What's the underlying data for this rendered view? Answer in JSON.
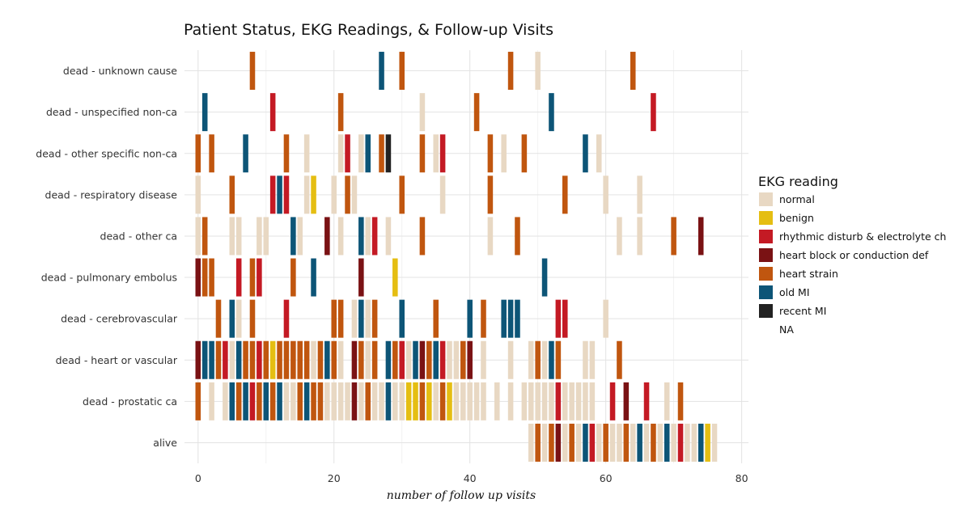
{
  "chart_data": {
    "type": "tile",
    "title": "Patient Status, EKG Readings, & Follow-up Visits",
    "xlabel": "number of follow up visits",
    "ylabel": "",
    "xlim": [
      -2,
      81
    ],
    "x_ticks": [
      0,
      20,
      40,
      60,
      80
    ],
    "grid": true,
    "legend": {
      "title": "EKG reading",
      "placement": "right",
      "entries": [
        {
          "key": "normal",
          "label": "normal",
          "color": "#E8D8C3"
        },
        {
          "key": "benign",
          "label": "benign",
          "color": "#E5BE12"
        },
        {
          "key": "rhythm",
          "label": "rhythmic disturb & electrolyte ch",
          "color": "#C41A24"
        },
        {
          "key": "block",
          "label": "heart block or conduction def",
          "color": "#7A1214"
        },
        {
          "key": "strain",
          "label": "heart strain",
          "color": "#C0560F"
        },
        {
          "key": "oldmi",
          "label": "old MI",
          "color": "#0D5577"
        },
        {
          "key": "recentmi",
          "label": "recent MI",
          "color": "#222222"
        },
        {
          "key": "na",
          "label": "NA",
          "color": "#FFFFFF"
        }
      ]
    },
    "categories": [
      "dead - unknown cause",
      "dead - unspecified non-ca",
      "dead - other specific non-ca",
      "dead - respiratory disease",
      "dead - other ca",
      "dead - pulmonary embolus",
      "dead - cerebrovascular",
      "dead - heart or vascular",
      "dead - prostatic ca",
      "alive"
    ],
    "series": [
      {
        "category": "dead - unknown cause",
        "points": [
          [
            8,
            "strain"
          ],
          [
            27,
            "oldmi"
          ],
          [
            30,
            "strain"
          ],
          [
            46,
            "strain"
          ],
          [
            50,
            "normal"
          ],
          [
            64,
            "strain"
          ]
        ]
      },
      {
        "category": "dead - unspecified non-ca",
        "points": [
          [
            1,
            "oldmi"
          ],
          [
            11,
            "rhythm"
          ],
          [
            21,
            "strain"
          ],
          [
            33,
            "normal"
          ],
          [
            41,
            "strain"
          ],
          [
            52,
            "oldmi"
          ],
          [
            67,
            "rhythm"
          ]
        ]
      },
      {
        "category": "dead - other specific non-ca",
        "points": [
          [
            0,
            "strain"
          ],
          [
            2,
            "strain"
          ],
          [
            7,
            "oldmi"
          ],
          [
            13,
            "strain"
          ],
          [
            16,
            "normal"
          ],
          [
            21,
            "normal"
          ],
          [
            22,
            "rhythm"
          ],
          [
            24,
            "normal"
          ],
          [
            25,
            "oldmi"
          ],
          [
            27,
            "strain"
          ],
          [
            28,
            "recentmi"
          ],
          [
            33,
            "strain"
          ],
          [
            35,
            "normal"
          ],
          [
            36,
            "rhythm"
          ],
          [
            43,
            "strain"
          ],
          [
            45,
            "normal"
          ],
          [
            48,
            "strain"
          ],
          [
            57,
            "oldmi"
          ],
          [
            59,
            "normal"
          ]
        ]
      },
      {
        "category": "dead - respiratory disease",
        "points": [
          [
            0,
            "normal"
          ],
          [
            5,
            "strain"
          ],
          [
            11,
            "rhythm"
          ],
          [
            12,
            "oldmi"
          ],
          [
            13,
            "rhythm"
          ],
          [
            16,
            "normal"
          ],
          [
            17,
            "benign"
          ],
          [
            20,
            "normal"
          ],
          [
            22,
            "strain"
          ],
          [
            23,
            "normal"
          ],
          [
            30,
            "strain"
          ],
          [
            36,
            "normal"
          ],
          [
            43,
            "strain"
          ],
          [
            54,
            "strain"
          ],
          [
            60,
            "normal"
          ],
          [
            65,
            "normal"
          ]
        ]
      },
      {
        "category": "dead - other ca",
        "points": [
          [
            0,
            "normal"
          ],
          [
            1,
            "strain"
          ],
          [
            5,
            "normal"
          ],
          [
            6,
            "normal"
          ],
          [
            9,
            "normal"
          ],
          [
            10,
            "normal"
          ],
          [
            14,
            "oldmi"
          ],
          [
            15,
            "normal"
          ],
          [
            19,
            "block"
          ],
          [
            21,
            "normal"
          ],
          [
            24,
            "oldmi"
          ],
          [
            25,
            "normal"
          ],
          [
            26,
            "rhythm"
          ],
          [
            28,
            "normal"
          ],
          [
            33,
            "strain"
          ],
          [
            43,
            "normal"
          ],
          [
            47,
            "strain"
          ],
          [
            62,
            "normal"
          ],
          [
            65,
            "normal"
          ],
          [
            70,
            "strain"
          ],
          [
            74,
            "block"
          ]
        ]
      },
      {
        "category": "dead - pulmonary embolus",
        "points": [
          [
            0,
            "block"
          ],
          [
            1,
            "strain"
          ],
          [
            2,
            "strain"
          ],
          [
            6,
            "rhythm"
          ],
          [
            8,
            "strain"
          ],
          [
            9,
            "rhythm"
          ],
          [
            14,
            "strain"
          ],
          [
            17,
            "oldmi"
          ],
          [
            24,
            "block"
          ],
          [
            29,
            "benign"
          ],
          [
            51,
            "oldmi"
          ]
        ]
      },
      {
        "category": "dead - cerebrovascular",
        "points": [
          [
            3,
            "strain"
          ],
          [
            5,
            "oldmi"
          ],
          [
            6,
            "normal"
          ],
          [
            8,
            "strain"
          ],
          [
            13,
            "rhythm"
          ],
          [
            20,
            "strain"
          ],
          [
            21,
            "strain"
          ],
          [
            23,
            "normal"
          ],
          [
            24,
            "oldmi"
          ],
          [
            25,
            "normal"
          ],
          [
            26,
            "strain"
          ],
          [
            30,
            "oldmi"
          ],
          [
            35,
            "strain"
          ],
          [
            40,
            "oldmi"
          ],
          [
            42,
            "strain"
          ],
          [
            45,
            "oldmi"
          ],
          [
            46,
            "oldmi"
          ],
          [
            47,
            "oldmi"
          ],
          [
            53,
            "rhythm"
          ],
          [
            54,
            "rhythm"
          ],
          [
            60,
            "normal"
          ]
        ]
      },
      {
        "category": "dead - heart or vascular",
        "points": [
          [
            0,
            "block"
          ],
          [
            1,
            "oldmi"
          ],
          [
            2,
            "oldmi"
          ],
          [
            3,
            "strain"
          ],
          [
            4,
            "rhythm"
          ],
          [
            5,
            "normal"
          ],
          [
            6,
            "oldmi"
          ],
          [
            7,
            "strain"
          ],
          [
            8,
            "strain"
          ],
          [
            9,
            "rhythm"
          ],
          [
            10,
            "strain"
          ],
          [
            11,
            "benign"
          ],
          [
            12,
            "strain"
          ],
          [
            13,
            "strain"
          ],
          [
            14,
            "strain"
          ],
          [
            15,
            "strain"
          ],
          [
            16,
            "strain"
          ],
          [
            17,
            "normal"
          ],
          [
            18,
            "strain"
          ],
          [
            19,
            "oldmi"
          ],
          [
            20,
            "strain"
          ],
          [
            21,
            "normal"
          ],
          [
            23,
            "block"
          ],
          [
            24,
            "strain"
          ],
          [
            25,
            "normal"
          ],
          [
            26,
            "strain"
          ],
          [
            28,
            "oldmi"
          ],
          [
            29,
            "strain"
          ],
          [
            30,
            "rhythm"
          ],
          [
            31,
            "normal"
          ],
          [
            32,
            "oldmi"
          ],
          [
            33,
            "block"
          ],
          [
            34,
            "strain"
          ],
          [
            35,
            "oldmi"
          ],
          [
            36,
            "rhythm"
          ],
          [
            37,
            "normal"
          ],
          [
            38,
            "normal"
          ],
          [
            39,
            "strain"
          ],
          [
            40,
            "block"
          ],
          [
            42,
            "normal"
          ],
          [
            46,
            "normal"
          ],
          [
            49,
            "normal"
          ],
          [
            50,
            "strain"
          ],
          [
            51,
            "normal"
          ],
          [
            52,
            "oldmi"
          ],
          [
            53,
            "strain"
          ],
          [
            57,
            "normal"
          ],
          [
            58,
            "normal"
          ],
          [
            62,
            "strain"
          ]
        ]
      },
      {
        "category": "dead - prostatic ca",
        "points": [
          [
            0,
            "strain"
          ],
          [
            2,
            "normal"
          ],
          [
            4,
            "normal"
          ],
          [
            5,
            "oldmi"
          ],
          [
            6,
            "strain"
          ],
          [
            7,
            "oldmi"
          ],
          [
            8,
            "rhythm"
          ],
          [
            9,
            "strain"
          ],
          [
            10,
            "oldmi"
          ],
          [
            11,
            "strain"
          ],
          [
            12,
            "oldmi"
          ],
          [
            13,
            "normal"
          ],
          [
            14,
            "normal"
          ],
          [
            15,
            "strain"
          ],
          [
            16,
            "oldmi"
          ],
          [
            17,
            "strain"
          ],
          [
            18,
            "strain"
          ],
          [
            19,
            "normal"
          ],
          [
            20,
            "normal"
          ],
          [
            21,
            "normal"
          ],
          [
            22,
            "normal"
          ],
          [
            23,
            "block"
          ],
          [
            24,
            "normal"
          ],
          [
            25,
            "strain"
          ],
          [
            26,
            "normal"
          ],
          [
            27,
            "normal"
          ],
          [
            28,
            "oldmi"
          ],
          [
            29,
            "normal"
          ],
          [
            30,
            "normal"
          ],
          [
            31,
            "benign"
          ],
          [
            32,
            "benign"
          ],
          [
            33,
            "strain"
          ],
          [
            34,
            "benign"
          ],
          [
            35,
            "normal"
          ],
          [
            36,
            "strain"
          ],
          [
            37,
            "benign"
          ],
          [
            38,
            "normal"
          ],
          [
            39,
            "normal"
          ],
          [
            40,
            "normal"
          ],
          [
            41,
            "normal"
          ],
          [
            42,
            "normal"
          ],
          [
            44,
            "normal"
          ],
          [
            46,
            "normal"
          ],
          [
            48,
            "normal"
          ],
          [
            49,
            "normal"
          ],
          [
            50,
            "normal"
          ],
          [
            51,
            "normal"
          ],
          [
            52,
            "normal"
          ],
          [
            53,
            "rhythm"
          ],
          [
            54,
            "normal"
          ],
          [
            55,
            "normal"
          ],
          [
            56,
            "normal"
          ],
          [
            57,
            "normal"
          ],
          [
            58,
            "normal"
          ],
          [
            61,
            "rhythm"
          ],
          [
            63,
            "block"
          ],
          [
            66,
            "rhythm"
          ],
          [
            69,
            "normal"
          ],
          [
            71,
            "strain"
          ]
        ]
      },
      {
        "category": "alive",
        "points": [
          [
            49,
            "normal"
          ],
          [
            50,
            "strain"
          ],
          [
            51,
            "normal"
          ],
          [
            52,
            "strain"
          ],
          [
            53,
            "block"
          ],
          [
            54,
            "normal"
          ],
          [
            55,
            "strain"
          ],
          [
            56,
            "normal"
          ],
          [
            57,
            "oldmi"
          ],
          [
            58,
            "rhythm"
          ],
          [
            59,
            "normal"
          ],
          [
            60,
            "strain"
          ],
          [
            61,
            "normal"
          ],
          [
            62,
            "normal"
          ],
          [
            63,
            "strain"
          ],
          [
            64,
            "normal"
          ],
          [
            65,
            "oldmi"
          ],
          [
            66,
            "normal"
          ],
          [
            67,
            "strain"
          ],
          [
            68,
            "normal"
          ],
          [
            69,
            "oldmi"
          ],
          [
            70,
            "normal"
          ],
          [
            71,
            "rhythm"
          ],
          [
            72,
            "normal"
          ],
          [
            73,
            "normal"
          ],
          [
            74,
            "oldmi"
          ],
          [
            75,
            "benign"
          ],
          [
            76,
            "normal"
          ]
        ]
      }
    ]
  }
}
